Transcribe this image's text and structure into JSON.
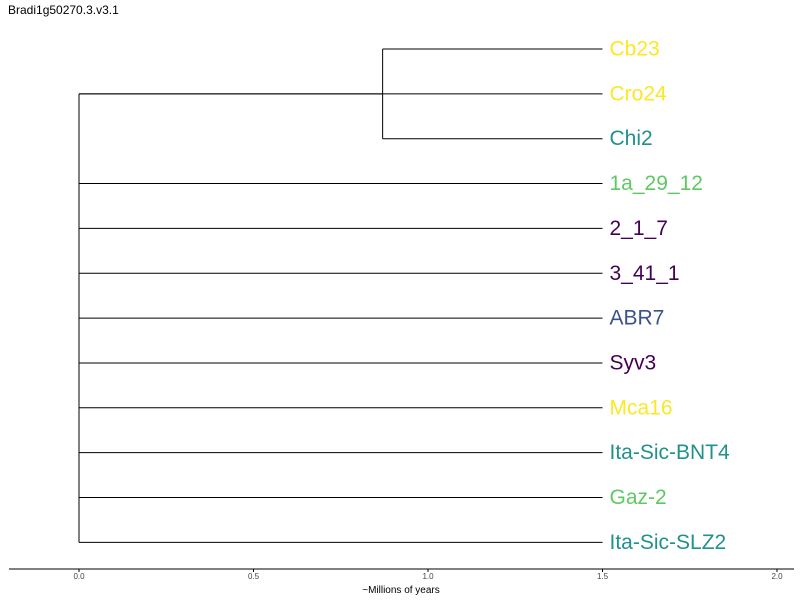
{
  "title": "Bradi1g50270.3.v3.1",
  "xlabel": "~Millions of years",
  "x_ticks": [
    "0.0",
    "0.5",
    "1.0",
    "1.5",
    "2.0"
  ],
  "tree": {
    "leaves": [
      {
        "name": "Cb23",
        "color": "#fde725"
      },
      {
        "name": "Cro24",
        "color": "#fde725"
      },
      {
        "name": "Chi2",
        "color": "#21918c"
      },
      {
        "name": "1a_29_12",
        "color": "#5ec962"
      },
      {
        "name": "2_1_7",
        "color": "#440154"
      },
      {
        "name": "3_41_1",
        "color": "#440154"
      },
      {
        "name": "ABR7",
        "color": "#3b528b"
      },
      {
        "name": "Syv3",
        "color": "#440154"
      },
      {
        "name": "Mca16",
        "color": "#fde725"
      },
      {
        "name": "Ita-Sic-BNT4",
        "color": "#21918c"
      },
      {
        "name": "Gaz-2",
        "color": "#5ec962"
      },
      {
        "name": "Ita-Sic-SLZ2",
        "color": "#21918c"
      }
    ],
    "root_children": [
      {
        "clade": [
          "Cb23",
          "Chi2"
        ],
        "node_age": 0.87
      },
      {
        "leaf": "Cro24"
      },
      {
        "leaf": "1a_29_12"
      },
      {
        "leaf": "2_1_7"
      },
      {
        "leaf": "3_41_1"
      },
      {
        "leaf": "ABR7"
      },
      {
        "leaf": "Syv3"
      },
      {
        "leaf": "Mca16"
      },
      {
        "leaf": "Ita-Sic-BNT4"
      },
      {
        "leaf": "Gaz-2"
      },
      {
        "leaf": "Ita-Sic-SLZ2"
      }
    ],
    "leaf_age": 1.5
  }
}
